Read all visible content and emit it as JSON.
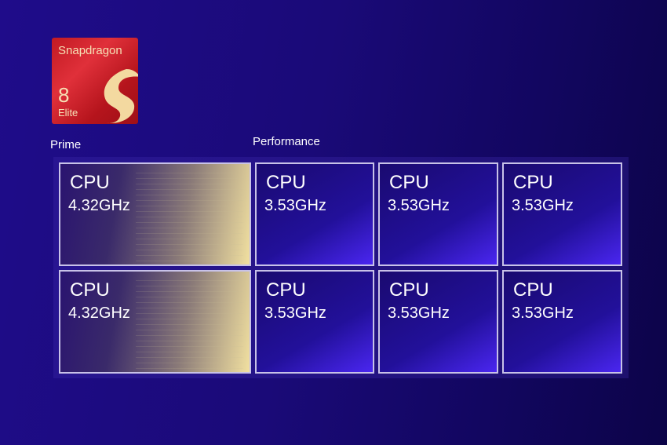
{
  "logo": {
    "brand": "Snapdragon",
    "number": "8",
    "tier": "Elite"
  },
  "labels": {
    "prime": "Prime",
    "performance": "Performance"
  },
  "cores": [
    {
      "type": "prime",
      "name": "CPU",
      "freq": "4.32GHz"
    },
    {
      "type": "performance",
      "name": "CPU",
      "freq": "3.53GHz"
    },
    {
      "type": "performance",
      "name": "CPU",
      "freq": "3.53GHz"
    },
    {
      "type": "performance",
      "name": "CPU",
      "freq": "3.53GHz"
    },
    {
      "type": "prime",
      "name": "CPU",
      "freq": "4.32GHz"
    },
    {
      "type": "performance",
      "name": "CPU",
      "freq": "3.53GHz"
    },
    {
      "type": "performance",
      "name": "CPU",
      "freq": "3.53GHz"
    },
    {
      "type": "performance",
      "name": "CPU",
      "freq": "3.53GHz"
    }
  ],
  "colors": {
    "background": "#1a0a78",
    "logo_red": "#c21a22",
    "logo_gold": "#f6e0b5",
    "prime_gold": "#f1e0a0",
    "performance_blue": "#4a26f0"
  }
}
